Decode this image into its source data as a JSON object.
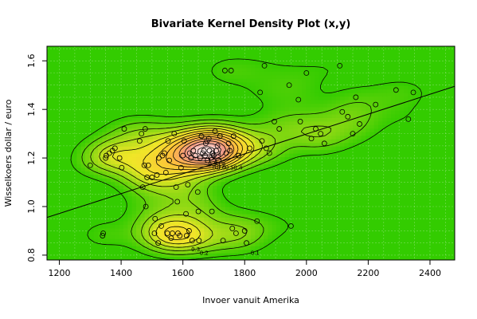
{
  "chart_data": {
    "type": "contour",
    "title": "Bivariate Kernel Density Plot (x,y)",
    "xlabel": "Invoer vanuit Amerika",
    "ylabel": "Wisselkoers dollar / euro",
    "xlim": [
      1160,
      2480
    ],
    "ylim": [
      0.78,
      1.66
    ],
    "xticks": [
      1200,
      1400,
      1600,
      1800,
      2000,
      2200,
      2400
    ],
    "yticks": [
      0.8,
      1.0,
      1.2,
      1.4,
      1.6
    ],
    "grid": true,
    "background_color": "#33cc00",
    "contour_labels": [
      "0.1",
      "0.2",
      "0.3",
      "0.4",
      "0.5",
      "0.6",
      "0.7",
      "0.8",
      "0.9",
      "1",
      "1.1",
      "1.2",
      "1.3"
    ],
    "regression_line": {
      "x": [
        1160,
        2480
      ],
      "y": [
        0.955,
        1.495
      ]
    },
    "points": [
      {
        "x": 1300,
        "y": 1.17
      },
      {
        "x": 1340,
        "y": 0.88
      },
      {
        "x": 1342,
        "y": 0.89
      },
      {
        "x": 1350,
        "y": 1.2
      },
      {
        "x": 1352,
        "y": 1.21
      },
      {
        "x": 1362,
        "y": 1.22
      },
      {
        "x": 1372,
        "y": 1.23
      },
      {
        "x": 1380,
        "y": 1.24
      },
      {
        "x": 1395,
        "y": 1.2
      },
      {
        "x": 1402,
        "y": 1.16
      },
      {
        "x": 1410,
        "y": 1.32
      },
      {
        "x": 1460,
        "y": 1.27
      },
      {
        "x": 1466,
        "y": 1.3
      },
      {
        "x": 1470,
        "y": 1.08
      },
      {
        "x": 1475,
        "y": 1.17
      },
      {
        "x": 1478,
        "y": 1.32
      },
      {
        "x": 1480,
        "y": 1.0
      },
      {
        "x": 1484,
        "y": 1.12
      },
      {
        "x": 1488,
        "y": 1.17
      },
      {
        "x": 1500,
        "y": 1.12
      },
      {
        "x": 1508,
        "y": 0.89
      },
      {
        "x": 1510,
        "y": 0.95
      },
      {
        "x": 1516,
        "y": 1.13
      },
      {
        "x": 1520,
        "y": 0.85
      },
      {
        "x": 1522,
        "y": 1.2
      },
      {
        "x": 1530,
        "y": 0.92
      },
      {
        "x": 1534,
        "y": 1.21
      },
      {
        "x": 1540,
        "y": 1.22
      },
      {
        "x": 1545,
        "y": 1.14
      },
      {
        "x": 1550,
        "y": 0.89
      },
      {
        "x": 1552,
        "y": 1.27
      },
      {
        "x": 1556,
        "y": 1.19
      },
      {
        "x": 1562,
        "y": 0.87
      },
      {
        "x": 1566,
        "y": 0.89
      },
      {
        "x": 1572,
        "y": 1.3
      },
      {
        "x": 1578,
        "y": 1.08
      },
      {
        "x": 1582,
        "y": 1.02
      },
      {
        "x": 1584,
        "y": 0.89
      },
      {
        "x": 1590,
        "y": 0.88
      },
      {
        "x": 1594,
        "y": 1.16
      },
      {
        "x": 1600,
        "y": 1.21
      },
      {
        "x": 1604,
        "y": 1.27
      },
      {
        "x": 1610,
        "y": 0.97
      },
      {
        "x": 1612,
        "y": 0.88
      },
      {
        "x": 1616,
        "y": 1.09
      },
      {
        "x": 1620,
        "y": 0.9
      },
      {
        "x": 1622,
        "y": 1.22
      },
      {
        "x": 1626,
        "y": 1.2
      },
      {
        "x": 1630,
        "y": 0.86
      },
      {
        "x": 1634,
        "y": 1.23
      },
      {
        "x": 1640,
        "y": 1.21
      },
      {
        "x": 1648,
        "y": 1.06
      },
      {
        "x": 1650,
        "y": 0.98
      },
      {
        "x": 1652,
        "y": 0.86
      },
      {
        "x": 1656,
        "y": 1.2
      },
      {
        "x": 1660,
        "y": 1.29
      },
      {
        "x": 1664,
        "y": 1.22
      },
      {
        "x": 1668,
        "y": 1.23
      },
      {
        "x": 1672,
        "y": 1.21
      },
      {
        "x": 1674,
        "y": 1.26
      },
      {
        "x": 1678,
        "y": 1.27
      },
      {
        "x": 1680,
        "y": 1.19
      },
      {
        "x": 1684,
        "y": 1.28
      },
      {
        "x": 1686,
        "y": 1.23
      },
      {
        "x": 1690,
        "y": 1.2
      },
      {
        "x": 1694,
        "y": 0.98
      },
      {
        "x": 1696,
        "y": 1.22
      },
      {
        "x": 1700,
        "y": 1.21
      },
      {
        "x": 1704,
        "y": 1.31
      },
      {
        "x": 1708,
        "y": 1.23
      },
      {
        "x": 1712,
        "y": 1.25
      },
      {
        "x": 1716,
        "y": 1.19
      },
      {
        "x": 1720,
        "y": 1.29
      },
      {
        "x": 1730,
        "y": 0.86
      },
      {
        "x": 1736,
        "y": 1.56
      },
      {
        "x": 1740,
        "y": 1.22
      },
      {
        "x": 1748,
        "y": 1.26
      },
      {
        "x": 1752,
        "y": 1.23
      },
      {
        "x": 1756,
        "y": 1.56
      },
      {
        "x": 1760,
        "y": 0.91
      },
      {
        "x": 1764,
        "y": 1.29
      },
      {
        "x": 1772,
        "y": 0.89
      },
      {
        "x": 1780,
        "y": 1.21
      },
      {
        "x": 1800,
        "y": 0.9
      },
      {
        "x": 1806,
        "y": 0.85
      },
      {
        "x": 1816,
        "y": 1.24
      },
      {
        "x": 1840,
        "y": 0.94
      },
      {
        "x": 1850,
        "y": 1.47
      },
      {
        "x": 1856,
        "y": 1.27
      },
      {
        "x": 1864,
        "y": 1.58
      },
      {
        "x": 1870,
        "y": 1.24
      },
      {
        "x": 1880,
        "y": 1.22
      },
      {
        "x": 1896,
        "y": 1.35
      },
      {
        "x": 1912,
        "y": 1.32
      },
      {
        "x": 1944,
        "y": 1.5
      },
      {
        "x": 1950,
        "y": 0.92
      },
      {
        "x": 1974,
        "y": 1.44
      },
      {
        "x": 1980,
        "y": 1.35
      },
      {
        "x": 2000,
        "y": 1.55
      },
      {
        "x": 2016,
        "y": 1.28
      },
      {
        "x": 2030,
        "y": 1.32
      },
      {
        "x": 2046,
        "y": 1.3
      },
      {
        "x": 2058,
        "y": 1.26
      },
      {
        "x": 2108,
        "y": 1.58
      },
      {
        "x": 2116,
        "y": 1.39
      },
      {
        "x": 2134,
        "y": 1.37
      },
      {
        "x": 2150,
        "y": 1.3
      },
      {
        "x": 2160,
        "y": 1.45
      },
      {
        "x": 2172,
        "y": 1.34
      },
      {
        "x": 2224,
        "y": 1.42
      },
      {
        "x": 2290,
        "y": 1.48
      },
      {
        "x": 2330,
        "y": 1.36
      },
      {
        "x": 2346,
        "y": 1.47
      }
    ]
  }
}
